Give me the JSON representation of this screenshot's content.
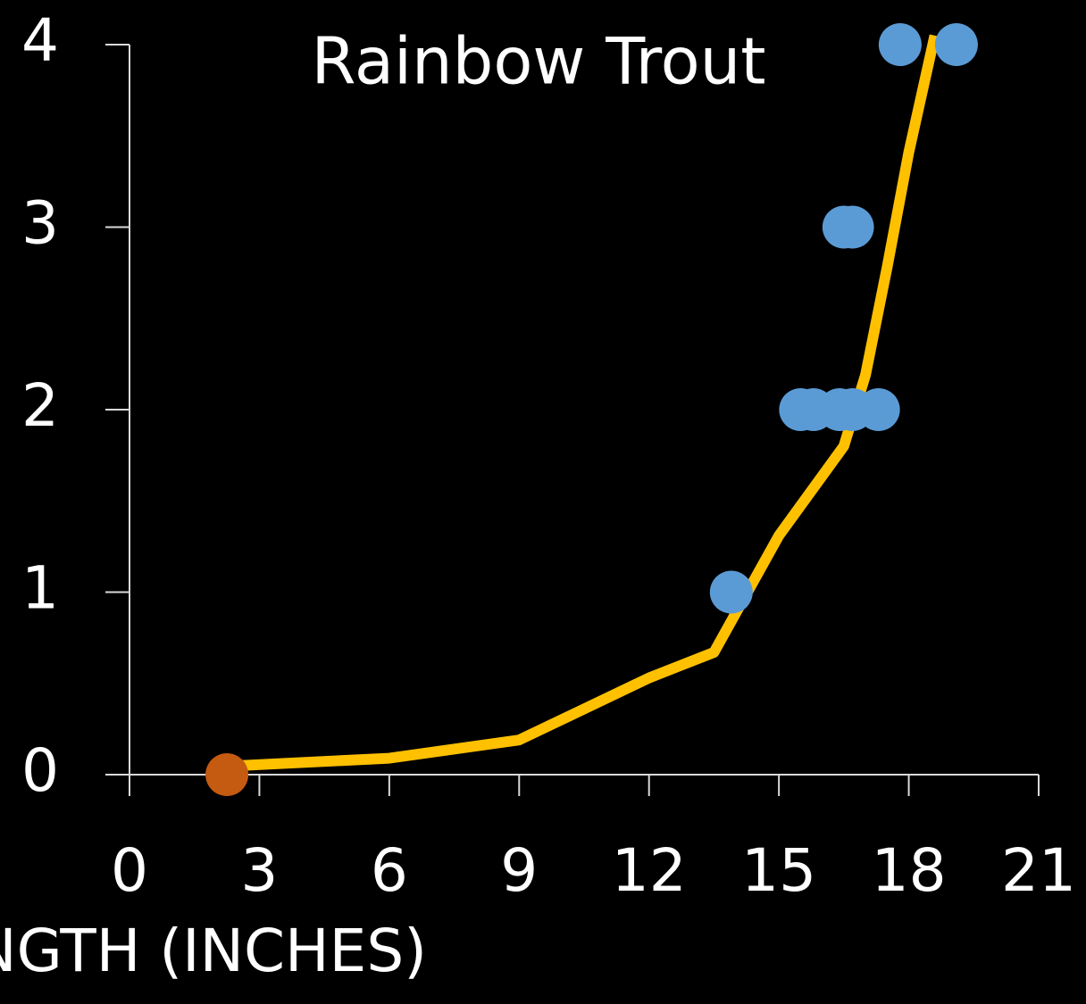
{
  "chart_data": {
    "type": "scatter",
    "title": "Rainbow Trout",
    "x_label": "LENGTH (INCHES)",
    "xlim": [
      0,
      21
    ],
    "ylim": [
      0,
      4
    ],
    "xticks": [
      0,
      3,
      6,
      9,
      12,
      15,
      18,
      21
    ],
    "yticks": [
      0,
      1,
      2,
      3,
      4
    ],
    "series": [
      {
        "color": "#5b9bd5",
        "x": [
          17.8,
          19.1,
          16.5,
          16.7,
          15.5,
          15.8,
          16.4,
          16.7,
          17.3,
          13.9
        ],
        "y": [
          4,
          4,
          3,
          3,
          2,
          2,
          2,
          2,
          2,
          1
        ]
      },
      {
        "color": "#c55a11",
        "x": [
          2.25
        ],
        "y": [
          0
        ]
      }
    ],
    "trendline": {
      "color": "#ffc000",
      "x": [
        2.6,
        6,
        9,
        12,
        13.5,
        15,
        16.5,
        17,
        17.5,
        18,
        18.6
      ],
      "y": [
        0.05,
        0.09,
        0.19,
        0.53,
        0.67,
        1.31,
        1.8,
        2.19,
        2.78,
        3.41,
        4.05
      ]
    }
  }
}
